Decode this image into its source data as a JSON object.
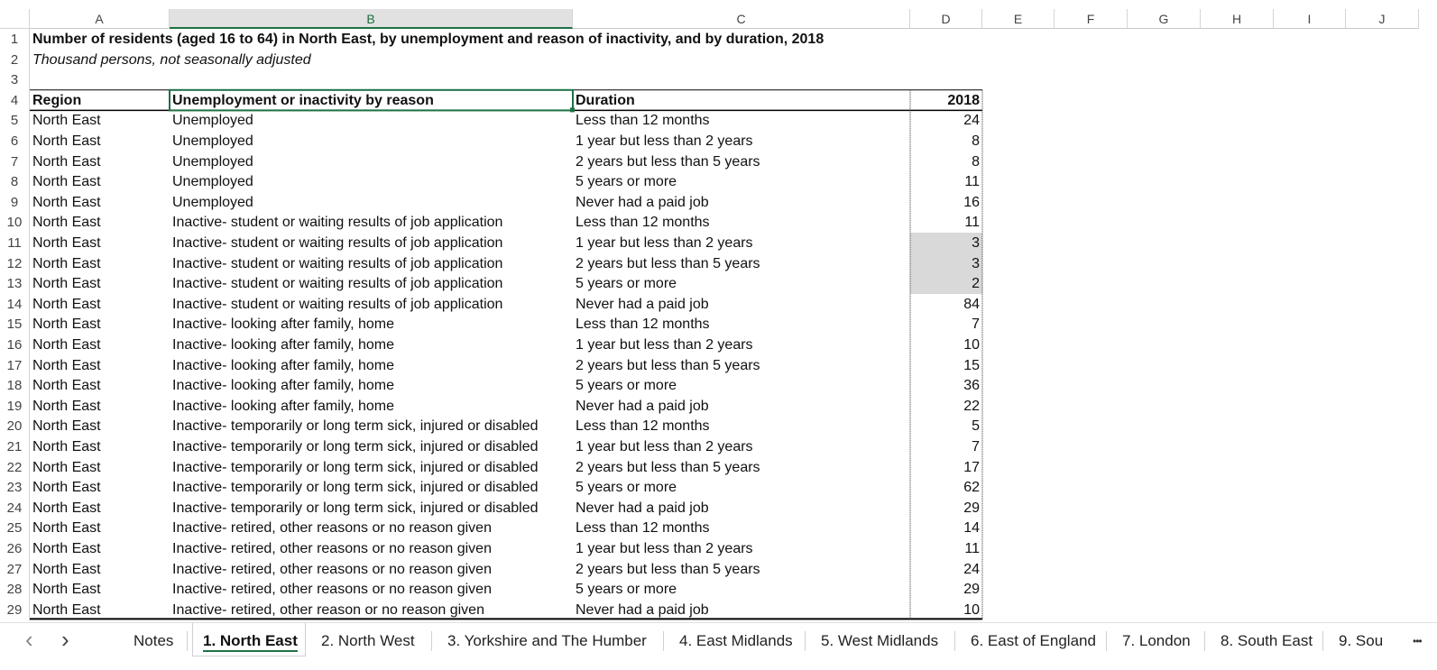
{
  "columns": [
    "A",
    "B",
    "C",
    "D",
    "E",
    "F",
    "G",
    "H",
    "I",
    "J"
  ],
  "title": "Number of residents (aged 16 to 64) in North East, by unemployment and reason of inactivity, and by duration, 2018",
  "subtitle": "Thousand persons, not seasonally adjusted",
  "headers": {
    "region": "Region",
    "reason": "Unemployment or inactivity by reason",
    "duration": "Duration",
    "year": "2018"
  },
  "rows": [
    {
      "n": "5",
      "region": "North East",
      "reason": "Unemployed",
      "duration": "Less than 12 months",
      "value": "24"
    },
    {
      "n": "6",
      "region": "North East",
      "reason": "Unemployed",
      "duration": "1 year but less than 2 years",
      "value": "8"
    },
    {
      "n": "7",
      "region": "North East",
      "reason": "Unemployed",
      "duration": "2 years but less than 5 years",
      "value": "8"
    },
    {
      "n": "8",
      "region": "North East",
      "reason": "Unemployed",
      "duration": "5 years or more",
      "value": "11"
    },
    {
      "n": "9",
      "region": "North East",
      "reason": "Unemployed",
      "duration": "Never had a paid job",
      "value": "16"
    },
    {
      "n": "10",
      "region": "North East",
      "reason": "Inactive- student or waiting results of job application",
      "duration": "Less than 12 months",
      "value": "11"
    },
    {
      "n": "11",
      "region": "North East",
      "reason": "Inactive- student or waiting results of job application",
      "duration": "1 year but less than 2 years",
      "value": "3"
    },
    {
      "n": "12",
      "region": "North East",
      "reason": "Inactive- student or waiting results of job application",
      "duration": "2 years but less than 5 years",
      "value": "3"
    },
    {
      "n": "13",
      "region": "North East",
      "reason": "Inactive- student or waiting results of job application",
      "duration": "5 years or more",
      "value": "2"
    },
    {
      "n": "14",
      "region": "North East",
      "reason": "Inactive- student or waiting results of job application",
      "duration": "Never had a paid job",
      "value": "84"
    },
    {
      "n": "15",
      "region": "North East",
      "reason": "Inactive- looking after family, home",
      "duration": "Less than 12 months",
      "value": "7"
    },
    {
      "n": "16",
      "region": "North East",
      "reason": "Inactive- looking after family, home",
      "duration": "1 year but less than 2 years",
      "value": "10"
    },
    {
      "n": "17",
      "region": "North East",
      "reason": "Inactive- looking after family, home",
      "duration": "2 years but less than 5 years",
      "value": "15"
    },
    {
      "n": "18",
      "region": "North East",
      "reason": "Inactive- looking after family, home",
      "duration": "5 years or more",
      "value": "36"
    },
    {
      "n": "19",
      "region": "North East",
      "reason": "Inactive- looking after family, home",
      "duration": "Never had a paid job",
      "value": "22"
    },
    {
      "n": "20",
      "region": "North East",
      "reason": "Inactive- temporarily or long term sick, injured or disabled",
      "duration": "Less than 12 months",
      "value": "5"
    },
    {
      "n": "21",
      "region": "North East",
      "reason": "Inactive- temporarily or long term sick, injured or disabled",
      "duration": "1 year but less than 2 years",
      "value": "7"
    },
    {
      "n": "22",
      "region": "North East",
      "reason": "Inactive- temporarily or long term sick, injured or disabled",
      "duration": "2 years but less than 5 years",
      "value": "17"
    },
    {
      "n": "23",
      "region": "North East",
      "reason": "Inactive- temporarily or long term sick, injured or disabled",
      "duration": "5 years or more",
      "value": "62"
    },
    {
      "n": "24",
      "region": "North East",
      "reason": "Inactive- temporarily or long term sick, injured or disabled",
      "duration": "Never had a paid job",
      "value": "29"
    },
    {
      "n": "25",
      "region": "North East",
      "reason": "Inactive- retired, other reasons or no reason given",
      "duration": "Less than 12 months",
      "value": "14"
    },
    {
      "n": "26",
      "region": "North East",
      "reason": "Inactive- retired, other reasons or no reason given",
      "duration": "1 year but less than 2 years",
      "value": "11"
    },
    {
      "n": "27",
      "region": "North East",
      "reason": "Inactive- retired, other reasons or no reason given",
      "duration": "2 years but less than 5 years",
      "value": "24"
    },
    {
      "n": "28",
      "region": "North East",
      "reason": "Inactive- retired, other reasons or no reason given",
      "duration": "5 years or more",
      "value": "29"
    },
    {
      "n": "29",
      "region": "North East",
      "reason": "Inactive- retired, other reason or no reason given",
      "duration": "Never had a paid job",
      "value": "10"
    }
  ],
  "grey_rows": [
    "11",
    "12",
    "13"
  ],
  "tabs": [
    "Notes",
    "1. North East",
    "2. North West",
    "3. Yorkshire and The Humber",
    "4. East Midlands",
    "5. West Midlands",
    "6. East of England",
    "7. London",
    "8. South East",
    "9. Sou"
  ],
  "active_tab": "1. North East",
  "icons": {
    "prev": "‹",
    "next": "›",
    "more": "•••"
  },
  "colors": {
    "accent": "#1e7145",
    "grey_fill": "#d9d9d9"
  }
}
